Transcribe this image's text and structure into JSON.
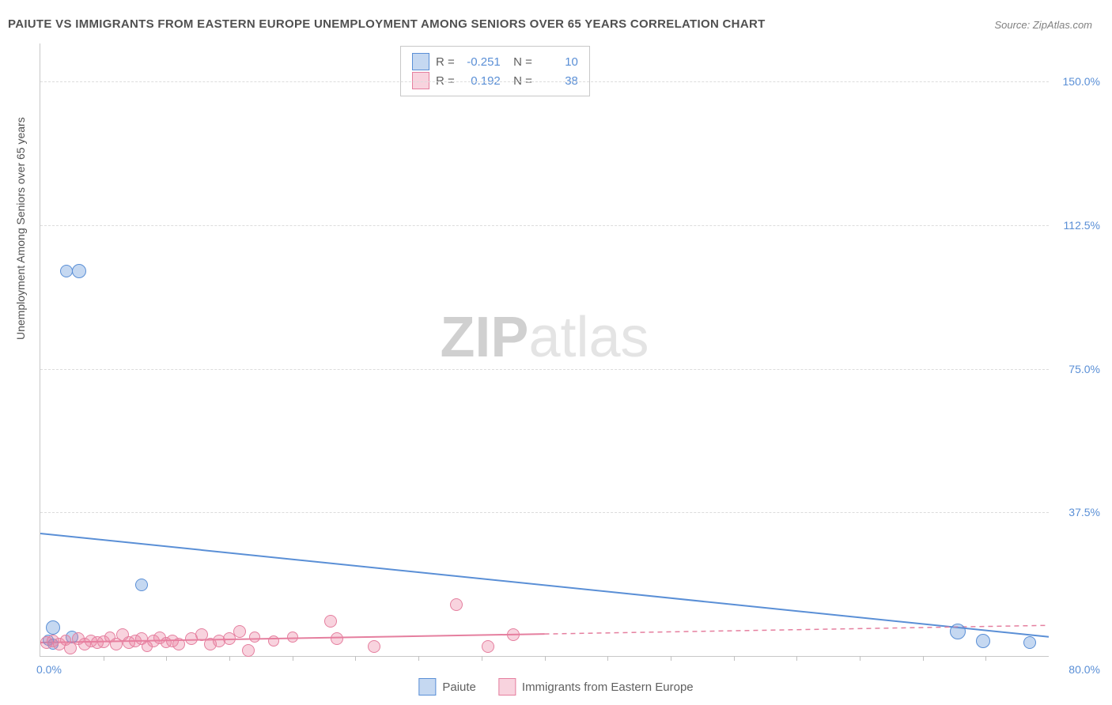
{
  "title": "PAIUTE VS IMMIGRANTS FROM EASTERN EUROPE UNEMPLOYMENT AMONG SENIORS OVER 65 YEARS CORRELATION CHART",
  "source": "Source: ZipAtlas.com",
  "y_axis_label": "Unemployment Among Seniors over 65 years",
  "watermark_a": "ZIP",
  "watermark_b": "atlas",
  "chart": {
    "type": "scatter",
    "xlim": [
      0,
      80
    ],
    "ylim": [
      0,
      160
    ],
    "x_tick_min": "0.0%",
    "x_tick_max": "80.0%",
    "y_ticks": [
      {
        "v": 37.5,
        "label": "37.5%"
      },
      {
        "v": 75.0,
        "label": "75.0%"
      },
      {
        "v": 112.5,
        "label": "112.5%"
      },
      {
        "v": 150.0,
        "label": "150.0%"
      }
    ],
    "x_minor_ticks": [
      5,
      10,
      15,
      20,
      25,
      30,
      35,
      40,
      45,
      50,
      55,
      60,
      65,
      70,
      75
    ],
    "marker_radius": 7,
    "colors": {
      "blue_fill": "rgba(90,143,214,0.35)",
      "blue_stroke": "#5a8fd6",
      "pink_fill": "rgba(235,128,160,0.35)",
      "pink_stroke": "#e57f9f",
      "grid": "#dcdcdc",
      "axis": "#c8c8c8",
      "tick_text": "#5a8fd6"
    },
    "series": [
      {
        "name": "Paiute",
        "color": "blue",
        "R": "-0.251",
        "N": "10",
        "points": [
          {
            "x": 2.1,
            "y": 100.5,
            "r": 7
          },
          {
            "x": 3.1,
            "y": 100.5,
            "r": 8
          },
          {
            "x": 1.0,
            "y": 7.5,
            "r": 8
          },
          {
            "x": 1.0,
            "y": 3.0,
            "r": 6
          },
          {
            "x": 0.6,
            "y": 4.2,
            "r": 6
          },
          {
            "x": 8.0,
            "y": 18.5,
            "r": 7
          },
          {
            "x": 2.5,
            "y": 5.0,
            "r": 7
          },
          {
            "x": 72.8,
            "y": 6.5,
            "r": 9
          },
          {
            "x": 74.8,
            "y": 4.0,
            "r": 8
          },
          {
            "x": 78.5,
            "y": 3.5,
            "r": 7
          }
        ],
        "trend": {
          "x1": 0,
          "y1": 32,
          "x2": 80,
          "y2": 5,
          "dash": false,
          "solid_until_x": 80
        }
      },
      {
        "name": "Immigrants from Eastern Europe",
        "color": "pink",
        "R": "0.192",
        "N": "38",
        "points": [
          {
            "x": 0.5,
            "y": 3.5,
            "r": 7
          },
          {
            "x": 1.0,
            "y": 4.0,
            "r": 7
          },
          {
            "x": 1.5,
            "y": 3.0,
            "r": 7
          },
          {
            "x": 2.0,
            "y": 4.2,
            "r": 6
          },
          {
            "x": 2.4,
            "y": 2.0,
            "r": 7
          },
          {
            "x": 3.0,
            "y": 4.5,
            "r": 7
          },
          {
            "x": 3.5,
            "y": 3.0,
            "r": 7
          },
          {
            "x": 4.0,
            "y": 4.0,
            "r": 7
          },
          {
            "x": 4.5,
            "y": 3.5,
            "r": 7
          },
          {
            "x": 5.0,
            "y": 3.8,
            "r": 7
          },
          {
            "x": 5.5,
            "y": 5.0,
            "r": 6
          },
          {
            "x": 6.0,
            "y": 3.0,
            "r": 7
          },
          {
            "x": 6.5,
            "y": 5.5,
            "r": 7
          },
          {
            "x": 7.0,
            "y": 3.5,
            "r": 7
          },
          {
            "x": 7.5,
            "y": 4.0,
            "r": 7
          },
          {
            "x": 8.0,
            "y": 4.5,
            "r": 7
          },
          {
            "x": 8.5,
            "y": 2.5,
            "r": 6
          },
          {
            "x": 9.0,
            "y": 4.0,
            "r": 7
          },
          {
            "x": 9.5,
            "y": 4.8,
            "r": 7
          },
          {
            "x": 10.0,
            "y": 3.5,
            "r": 6
          },
          {
            "x": 10.5,
            "y": 4.0,
            "r": 7
          },
          {
            "x": 11.0,
            "y": 3.0,
            "r": 7
          },
          {
            "x": 12.0,
            "y": 4.5,
            "r": 7
          },
          {
            "x": 12.8,
            "y": 5.5,
            "r": 7
          },
          {
            "x": 13.5,
            "y": 3.0,
            "r": 7
          },
          {
            "x": 14.2,
            "y": 4.0,
            "r": 7
          },
          {
            "x": 15.0,
            "y": 4.5,
            "r": 7
          },
          {
            "x": 15.8,
            "y": 6.5,
            "r": 7
          },
          {
            "x": 16.5,
            "y": 1.5,
            "r": 7
          },
          {
            "x": 17.0,
            "y": 5.0,
            "r": 6
          },
          {
            "x": 18.5,
            "y": 4.0,
            "r": 6
          },
          {
            "x": 20.0,
            "y": 5.0,
            "r": 6
          },
          {
            "x": 23.0,
            "y": 9.0,
            "r": 7
          },
          {
            "x": 23.5,
            "y": 4.5,
            "r": 7
          },
          {
            "x": 26.5,
            "y": 2.5,
            "r": 7
          },
          {
            "x": 33.0,
            "y": 13.5,
            "r": 7
          },
          {
            "x": 35.5,
            "y": 2.5,
            "r": 7
          },
          {
            "x": 37.5,
            "y": 5.5,
            "r": 7
          }
        ],
        "trend": {
          "x1": 0,
          "y1": 3.5,
          "x2": 80,
          "y2": 8.0,
          "dash": true,
          "solid_until_x": 40
        }
      }
    ]
  },
  "bottom_legend": [
    {
      "color": "blue",
      "label": "Paiute"
    },
    {
      "color": "pink",
      "label": "Immigrants from Eastern Europe"
    }
  ]
}
